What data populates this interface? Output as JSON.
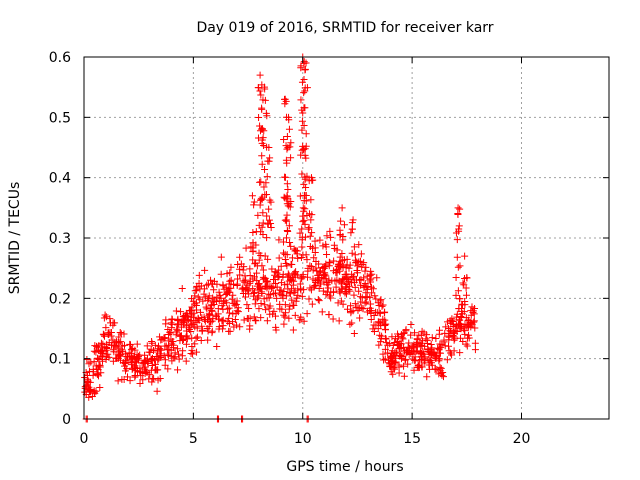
{
  "chart_data": {
    "type": "scatter",
    "title": "Day 019 of 2016, SRMTID for receiver karr",
    "xlabel": "GPS time / hours",
    "ylabel": "SRMTID / TECUs",
    "xlim": [
      0,
      24
    ],
    "ylim": [
      0,
      0.6
    ],
    "x_ticks": [
      0,
      5,
      10,
      15,
      20
    ],
    "y_ticks": [
      0,
      0.1,
      0.2,
      0.3,
      0.4,
      0.5,
      0.6
    ],
    "x_tick_labels": [
      "0",
      "5",
      "10",
      "15",
      "20"
    ],
    "y_tick_labels": [
      "0",
      "0.1",
      "0.2",
      "0.3",
      "0.4",
      "0.5",
      "0.6"
    ],
    "grid": true,
    "marker": "+",
    "color": "#ff0000",
    "series": [
      {
        "name": "SRMTID",
        "envelope": [
          {
            "x": 0.0,
            "mean": 0.06,
            "spread": 0.03
          },
          {
            "x": 0.5,
            "mean": 0.07,
            "spread": 0.04
          },
          {
            "x": 1.0,
            "mean": 0.13,
            "spread": 0.04
          },
          {
            "x": 1.5,
            "mean": 0.12,
            "spread": 0.04
          },
          {
            "x": 2.0,
            "mean": 0.1,
            "spread": 0.035
          },
          {
            "x": 2.5,
            "mean": 0.09,
            "spread": 0.03
          },
          {
            "x": 3.0,
            "mean": 0.09,
            "spread": 0.035
          },
          {
            "x": 3.5,
            "mean": 0.1,
            "spread": 0.035
          },
          {
            "x": 4.0,
            "mean": 0.14,
            "spread": 0.05
          },
          {
            "x": 4.5,
            "mean": 0.15,
            "spread": 0.05
          },
          {
            "x": 5.0,
            "mean": 0.16,
            "spread": 0.05
          },
          {
            "x": 5.5,
            "mean": 0.18,
            "spread": 0.05
          },
          {
            "x": 6.0,
            "mean": 0.19,
            "spread": 0.05
          },
          {
            "x": 6.5,
            "mean": 0.2,
            "spread": 0.06
          },
          {
            "x": 7.0,
            "mean": 0.21,
            "spread": 0.06
          },
          {
            "x": 7.5,
            "mean": 0.22,
            "spread": 0.07
          },
          {
            "x": 8.0,
            "mean": 0.22,
            "spread": 0.07
          },
          {
            "x": 8.5,
            "mean": 0.22,
            "spread": 0.06
          },
          {
            "x": 9.0,
            "mean": 0.22,
            "spread": 0.06
          },
          {
            "x": 9.5,
            "mean": 0.23,
            "spread": 0.06
          },
          {
            "x": 10.0,
            "mean": 0.23,
            "spread": 0.07
          },
          {
            "x": 10.5,
            "mean": 0.24,
            "spread": 0.06
          },
          {
            "x": 11.0,
            "mean": 0.25,
            "spread": 0.05
          },
          {
            "x": 11.5,
            "mean": 0.23,
            "spread": 0.06
          },
          {
            "x": 12.0,
            "mean": 0.22,
            "spread": 0.06
          },
          {
            "x": 12.5,
            "mean": 0.21,
            "spread": 0.06
          },
          {
            "x": 13.0,
            "mean": 0.2,
            "spread": 0.05
          },
          {
            "x": 13.5,
            "mean": 0.17,
            "spread": 0.05
          },
          {
            "x": 14.0,
            "mean": 0.11,
            "spread": 0.035
          },
          {
            "x": 14.5,
            "mean": 0.11,
            "spread": 0.03
          },
          {
            "x": 15.0,
            "mean": 0.12,
            "spread": 0.035
          },
          {
            "x": 15.5,
            "mean": 0.11,
            "spread": 0.035
          },
          {
            "x": 16.0,
            "mean": 0.1,
            "spread": 0.035
          },
          {
            "x": 16.5,
            "mean": 0.12,
            "spread": 0.035
          },
          {
            "x": 17.0,
            "mean": 0.16,
            "spread": 0.05
          },
          {
            "x": 17.5,
            "mean": 0.16,
            "spread": 0.05
          },
          {
            "x": 17.9,
            "mean": 0.15,
            "spread": 0.03
          }
        ],
        "spikes": [
          {
            "x": 7.7,
            "y_min": 0.27,
            "y_max": 0.37
          },
          {
            "x": 8.05,
            "y_min": 0.3,
            "y_max": 0.57
          },
          {
            "x": 8.25,
            "y_min": 0.3,
            "y_max": 0.55
          },
          {
            "x": 8.45,
            "y_min": 0.3,
            "y_max": 0.45
          },
          {
            "x": 9.2,
            "y_min": 0.3,
            "y_max": 0.53
          },
          {
            "x": 9.35,
            "y_min": 0.3,
            "y_max": 0.5
          },
          {
            "x": 10.0,
            "y_min": 0.3,
            "y_max": 0.6
          },
          {
            "x": 10.15,
            "y_min": 0.3,
            "y_max": 0.59
          },
          {
            "x": 10.4,
            "y_min": 0.28,
            "y_max": 0.4
          },
          {
            "x": 11.8,
            "y_min": 0.25,
            "y_max": 0.35
          },
          {
            "x": 12.3,
            "y_min": 0.23,
            "y_max": 0.33
          },
          {
            "x": 17.1,
            "y_min": 0.22,
            "y_max": 0.35
          },
          {
            "x": 17.4,
            "y_min": 0.2,
            "y_max": 0.27
          }
        ],
        "zero_points": [
          0.1,
          6.1,
          7.2,
          10.2
        ]
      }
    ]
  }
}
